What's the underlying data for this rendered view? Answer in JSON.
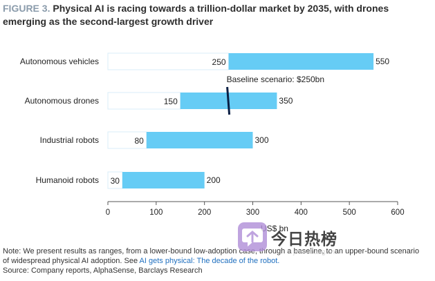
{
  "figure": {
    "label": "FIGURE 3.",
    "title": "Physical AI is racing towards a trillion-dollar market by 2035, with drones  emerging as the second-largest growth driver"
  },
  "chart_data": {
    "type": "bar",
    "subtype": "floating-range",
    "orientation": "horizontal",
    "categories": [
      "Autonomous vehicles",
      "Autonomous drones",
      "Industrial robots",
      "Humanoid robots"
    ],
    "series": [
      {
        "name": "Lower bound",
        "values": [
          250,
          150,
          80,
          30
        ]
      },
      {
        "name": "Upper bound",
        "values": [
          550,
          350,
          300,
          200
        ]
      }
    ],
    "xlabel": "US$ bn",
    "xlim": [
      0,
      600
    ],
    "xticks": [
      0,
      100,
      200,
      300,
      400,
      500,
      600
    ],
    "baseline": {
      "value": 250,
      "label": "Baseline scenario: $250bn",
      "category": "Autonomous drones"
    },
    "colors": {
      "bar": "#66ccf5",
      "baseline_line": "#0a1f44",
      "stub_border": "#d8eef8",
      "axis": "#555555"
    }
  },
  "note": {
    "line1": "Note: We present results as ranges, from a lower-bound low-adoption case, through a baseline, to an upper-bound scenario",
    "line2_prefix": "of widespread physical AI adoption. See ",
    "line2_link": "AI gets physical: The decade of the robot.",
    "source": "Source: Company reports, AlphaSense, Barclays Research"
  },
  "watermark": {
    "icon": "chat-bubble-icon",
    "name": "今日热榜",
    "url": "jinrirebang.cn"
  }
}
